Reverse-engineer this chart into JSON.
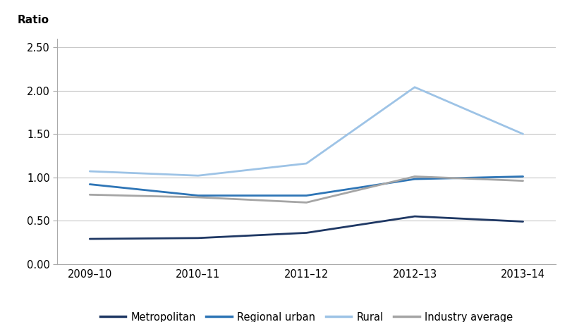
{
  "x_labels": [
    "2009–10",
    "2010–11",
    "2011–12",
    "2012–13",
    "2013–14"
  ],
  "series": {
    "Metropolitan": {
      "values": [
        0.29,
        0.3,
        0.36,
        0.55,
        0.49
      ],
      "color": "#1f3864",
      "linewidth": 2.0
    },
    "Regional urban": {
      "values": [
        0.92,
        0.79,
        0.79,
        0.98,
        1.01
      ],
      "color": "#2e75b6",
      "linewidth": 2.0
    },
    "Rural": {
      "values": [
        1.07,
        1.02,
        1.16,
        2.04,
        1.5
      ],
      "color": "#9dc3e6",
      "linewidth": 2.0
    },
    "Industry average": {
      "values": [
        0.8,
        0.77,
        0.71,
        1.01,
        0.96
      ],
      "color": "#a5a5a5",
      "linewidth": 2.0
    }
  },
  "ylabel": "Ratio",
  "ylim": [
    0.0,
    2.6
  ],
  "yticks": [
    0.0,
    0.5,
    1.0,
    1.5,
    2.0,
    2.5
  ],
  "ytick_labels": [
    "0.00",
    "0.50",
    "1.00",
    "1.50",
    "2.00",
    "2.50"
  ],
  "grid_color": "#c8c8c8",
  "background_color": "#ffffff",
  "legend_order": [
    "Metropolitan",
    "Regional urban",
    "Rural",
    "Industry average"
  ],
  "spine_color": "#aaaaaa"
}
